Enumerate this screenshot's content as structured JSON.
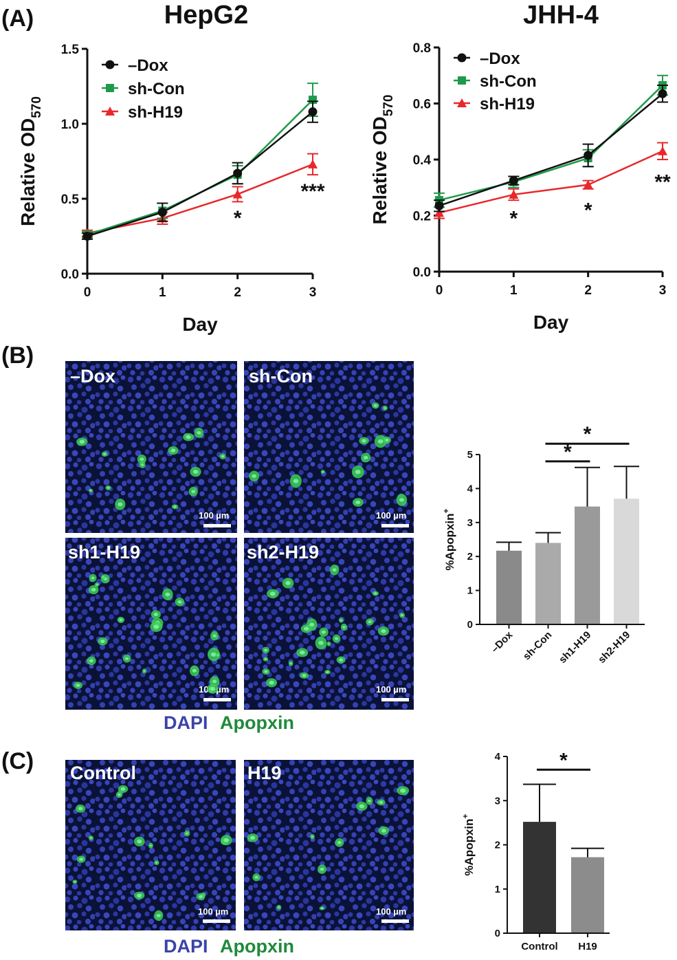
{
  "panels": {
    "a": "(A)",
    "b": "(B)",
    "c": "(C)"
  },
  "colors": {
    "dox": "#111111",
    "shcon": "#1e9a4a",
    "shh19": "#e8282b",
    "dapi": "#3a44a8",
    "apopxin": "#1f8a3c",
    "nuclei_bg": "#0a1030"
  },
  "stain_label": {
    "dapi": "DAPI",
    "apopxin": "Apopxin"
  },
  "chart_data": [
    {
      "type": "line",
      "title": "HepG2",
      "xlabel": "Day",
      "ylabel_main": "Relative OD",
      "ylabel_sub": "570",
      "x": [
        0,
        1,
        2,
        3
      ],
      "xlim": [
        0,
        3
      ],
      "ylim": [
        0,
        1.5
      ],
      "yticks": [
        0.0,
        0.5,
        1.0,
        1.5
      ],
      "ytick_labels": [
        "0.0",
        "0.5",
        "1.0",
        "1.5"
      ],
      "xtick_labels": [
        "0",
        "1",
        "2",
        "3"
      ],
      "legend_position": "top-left",
      "series": [
        {
          "name": "–Dox",
          "key": "dox",
          "marker": "circle",
          "values": [
            0.25,
            0.41,
            0.67,
            1.08
          ],
          "errors": [
            0.02,
            0.06,
            0.07,
            0.07
          ]
        },
        {
          "name": "sh-Con",
          "key": "shcon",
          "marker": "square",
          "values": [
            0.26,
            0.42,
            0.66,
            1.16
          ],
          "errors": [
            0.02,
            0.05,
            0.06,
            0.11
          ]
        },
        {
          "name": "sh-H19",
          "key": "shh19",
          "marker": "triangle",
          "values": [
            0.27,
            0.37,
            0.53,
            0.73
          ],
          "errors": [
            0.02,
            0.04,
            0.05,
            0.07
          ]
        }
      ],
      "significance": [
        {
          "x": 2,
          "y": 0.38,
          "text": "*"
        },
        {
          "x": 3,
          "y": 0.56,
          "text": "***"
        }
      ]
    },
    {
      "type": "line",
      "title": "JHH-4",
      "xlabel": "Day",
      "ylabel_main": "Relative OD",
      "ylabel_sub": "570",
      "x": [
        0,
        1,
        2,
        3
      ],
      "xlim": [
        0,
        3
      ],
      "ylim": [
        0,
        0.8
      ],
      "yticks": [
        0.0,
        0.2,
        0.4,
        0.6,
        0.8
      ],
      "ytick_labels": [
        "0.0",
        "0.2",
        "0.4",
        "0.6",
        "0.8"
      ],
      "xtick_labels": [
        "0",
        "1",
        "2",
        "3"
      ],
      "legend_position": "top-left",
      "series": [
        {
          "name": "–Dox",
          "key": "dox",
          "marker": "circle",
          "values": [
            0.235,
            0.325,
            0.415,
            0.635
          ],
          "errors": [
            0.02,
            0.015,
            0.04,
            0.03
          ]
        },
        {
          "name": "sh-Con",
          "key": "shcon",
          "marker": "square",
          "values": [
            0.255,
            0.32,
            0.405,
            0.665
          ],
          "errors": [
            0.025,
            0.02,
            0.03,
            0.035
          ]
        },
        {
          "name": "sh-H19",
          "key": "shh19",
          "marker": "triangle",
          "values": [
            0.21,
            0.275,
            0.31,
            0.43
          ],
          "errors": [
            0.02,
            0.02,
            0.015,
            0.03
          ]
        }
      ],
      "significance": [
        {
          "x": 1,
          "y": 0.195,
          "text": "*"
        },
        {
          "x": 2,
          "y": 0.225,
          "text": "*"
        },
        {
          "x": 3,
          "y": 0.325,
          "text": "**"
        }
      ]
    },
    {
      "type": "bar",
      "categories": [
        "–Dox",
        "sh-Con",
        "sh1-H19",
        "sh2-H19"
      ],
      "values": [
        2.17,
        2.4,
        3.47,
        3.7
      ],
      "errors": [
        0.25,
        0.3,
        1.15,
        0.95
      ],
      "bar_colors": [
        "#8a8a8a",
        "#aaaaaa",
        "#9a9a9a",
        "#d9d9d9"
      ],
      "ylabel_main": "%Apopxin",
      "ylabel_sup": "+",
      "ylim": [
        0,
        5
      ],
      "yticks": [
        "0",
        "1",
        "2",
        "3",
        "4",
        "5"
      ],
      "brackets": [
        {
          "from": 1,
          "to": 3,
          "y": 5.32,
          "text": "*"
        },
        {
          "from": 1,
          "to": 2,
          "y": 4.8,
          "text": "*"
        }
      ]
    },
    {
      "type": "bar",
      "categories": [
        "Control",
        "H19"
      ],
      "values": [
        2.52,
        1.72
      ],
      "errors": [
        0.85,
        0.2
      ],
      "bar_colors": [
        "#333333",
        "#8c8c8c"
      ],
      "ylabel_main": "%Apopxin",
      "ylabel_sup": "+",
      "ylim": [
        0,
        4
      ],
      "yticks": [
        "0",
        "1",
        "2",
        "3",
        "4"
      ],
      "brackets": [
        {
          "from": 0,
          "to": 1,
          "y": 3.7,
          "text": "*"
        }
      ]
    }
  ],
  "micrographs": {
    "b": [
      {
        "label": "–Dox",
        "scale": "100 µm"
      },
      {
        "label": "sh-Con",
        "scale": "100 µm"
      },
      {
        "label": "sh1-H19",
        "scale": "100 µm"
      },
      {
        "label": "sh2-H19",
        "scale": "100 µm"
      }
    ],
    "c": [
      {
        "label": "Control",
        "scale": "100 µm"
      },
      {
        "label": "H19",
        "scale": "100 µm"
      }
    ]
  }
}
